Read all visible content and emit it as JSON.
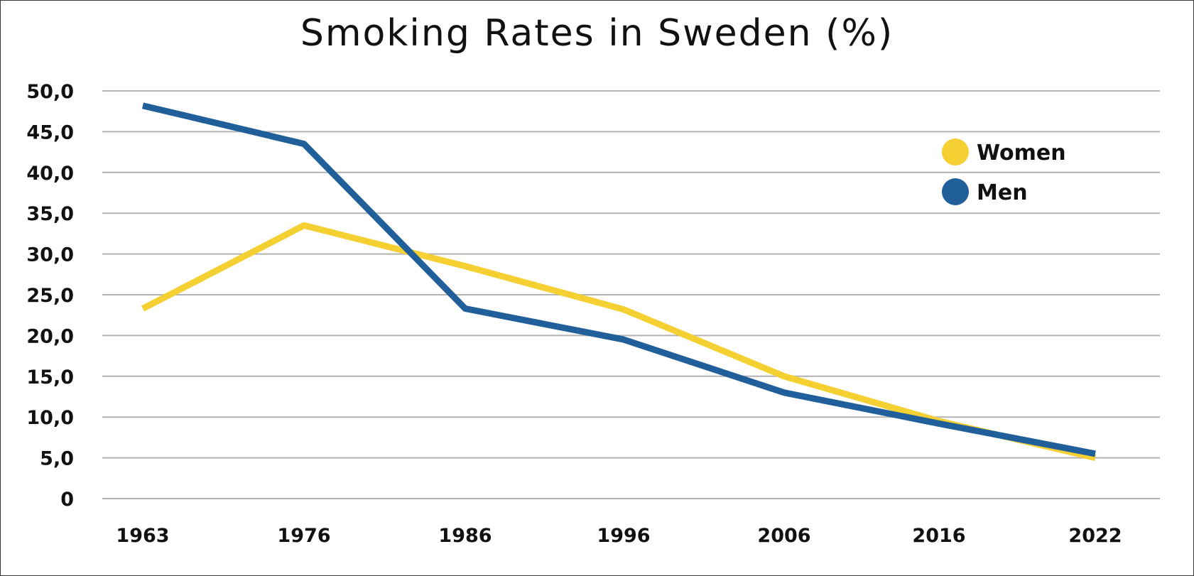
{
  "chart_data": {
    "type": "line",
    "title": "Smoking Rates in Sweden (%)",
    "xlabel": "",
    "ylabel": "",
    "categories": [
      "1963",
      "1976",
      "1986",
      "1996",
      "2006",
      "2016",
      "2022"
    ],
    "y_ticks": [
      "0",
      "5,0",
      "10,0",
      "15,0",
      "20,0",
      "25,0",
      "30,0",
      "35,0",
      "40,0",
      "45,0",
      "50,0"
    ],
    "ylim": [
      0,
      50
    ],
    "grid": true,
    "legend_position": "top-right",
    "series": [
      {
        "name": "Women",
        "color": "#f5d033",
        "values": [
          23.3,
          33.5,
          28.5,
          23.2,
          15.0,
          9.5,
          5.0
        ]
      },
      {
        "name": "Men",
        "color": "#215f9a",
        "values": [
          48.2,
          43.5,
          23.3,
          19.5,
          13.0,
          9.2,
          5.5
        ]
      }
    ]
  }
}
